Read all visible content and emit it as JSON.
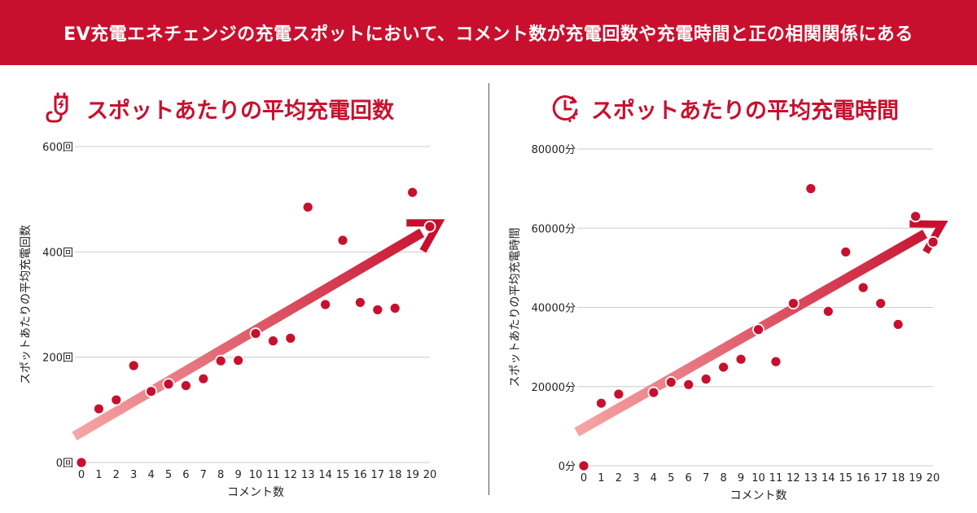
{
  "header": {
    "title": "EV充電エネチェンジの充電スポットにおいて、コメント数が充電回数や充電時間と正の相関関係にある"
  },
  "colors": {
    "accent": "#c8102e",
    "trend_start": "#f6a5a5",
    "trend_end": "#c8102e",
    "grid": "#cccccc"
  },
  "icons": {
    "left": "ev-charger-plug-icon",
    "right": "clock-icon"
  },
  "chart_data": [
    {
      "type": "scatter",
      "title": "スポットあたりの平均充電回数",
      "xlabel": "コメント数",
      "ylabel": "スポットあたりの平均充電回数",
      "x_ticks": [
        0,
        1,
        2,
        3,
        4,
        5,
        6,
        7,
        8,
        9,
        10,
        11,
        12,
        13,
        14,
        15,
        16,
        17,
        18,
        19,
        20
      ],
      "y_ticks": [
        {
          "value": 0,
          "label": "0回"
        },
        {
          "value": 200,
          "label": "200回"
        },
        {
          "value": 400,
          "label": "400回"
        },
        {
          "value": 600,
          "label": "600回"
        }
      ],
      "xlim": [
        0,
        20
      ],
      "ylim": [
        0,
        600
      ],
      "grid": true,
      "trend": {
        "from": [
          -0.4,
          50
        ],
        "to": [
          20.5,
          455
        ]
      },
      "points": [
        {
          "x": 0,
          "y": 0
        },
        {
          "x": 1,
          "y": 102
        },
        {
          "x": 2,
          "y": 119
        },
        {
          "x": 3,
          "y": 184
        },
        {
          "x": 4,
          "y": 135
        },
        {
          "x": 5,
          "y": 149
        },
        {
          "x": 6,
          "y": 146
        },
        {
          "x": 7,
          "y": 159
        },
        {
          "x": 8,
          "y": 193
        },
        {
          "x": 9,
          "y": 194
        },
        {
          "x": 10,
          "y": 245
        },
        {
          "x": 11,
          "y": 231
        },
        {
          "x": 12,
          "y": 236
        },
        {
          "x": 13,
          "y": 485
        },
        {
          "x": 14,
          "y": 300
        },
        {
          "x": 15,
          "y": 422
        },
        {
          "x": 16,
          "y": 304
        },
        {
          "x": 17,
          "y": 290
        },
        {
          "x": 18,
          "y": 293
        },
        {
          "x": 19,
          "y": 513
        },
        {
          "x": 20,
          "y": 448
        }
      ]
    },
    {
      "type": "scatter",
      "title": "スポットあたりの平均充電時間",
      "xlabel": "コメント数",
      "ylabel": "スポットあたりの平均充電時間",
      "x_ticks": [
        0,
        1,
        2,
        3,
        4,
        5,
        6,
        7,
        8,
        9,
        10,
        11,
        12,
        13,
        14,
        15,
        16,
        17,
        18,
        19,
        20
      ],
      "y_ticks": [
        {
          "value": 0,
          "label": "0分"
        },
        {
          "value": 20000,
          "label": "20000分"
        },
        {
          "value": 40000,
          "label": "40000分"
        },
        {
          "value": 60000,
          "label": "60000分"
        },
        {
          "value": 80000,
          "label": "80000分"
        }
      ],
      "xlim": [
        0,
        20
      ],
      "ylim": [
        0,
        80000
      ],
      "grid": true,
      "trend": {
        "from": [
          -0.4,
          8500
        ],
        "to": [
          20.5,
          61000
        ]
      },
      "points": [
        {
          "x": 0,
          "y": 0
        },
        {
          "x": 1,
          "y": 15800
        },
        {
          "x": 2,
          "y": 18100
        },
        {
          "x": 4,
          "y": 18500
        },
        {
          "x": 5,
          "y": 21100
        },
        {
          "x": 6,
          "y": 20500
        },
        {
          "x": 7,
          "y": 21900
        },
        {
          "x": 8,
          "y": 24900
        },
        {
          "x": 9,
          "y": 26900
        },
        {
          "x": 10,
          "y": 34400
        },
        {
          "x": 11,
          "y": 26300
        },
        {
          "x": 12,
          "y": 41000
        },
        {
          "x": 13,
          "y": 70000
        },
        {
          "x": 14,
          "y": 39000
        },
        {
          "x": 15,
          "y": 54000
        },
        {
          "x": 16,
          "y": 45000
        },
        {
          "x": 17,
          "y": 41000
        },
        {
          "x": 18,
          "y": 35700
        },
        {
          "x": 19,
          "y": 63000
        },
        {
          "x": 20,
          "y": 56500
        }
      ]
    }
  ]
}
